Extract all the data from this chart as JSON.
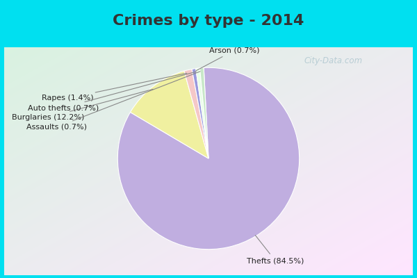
{
  "title": "Crimes by type - 2014",
  "labels": [
    "Thefts",
    "Burglaries",
    "Rapes",
    "Arson",
    "Auto thefts",
    "Assaults"
  ],
  "percentages": [
    84.5,
    12.2,
    1.4,
    0.7,
    0.7,
    0.7
  ],
  "colors": [
    "#c0aee0",
    "#f0f0a0",
    "#f5c8c8",
    "#9999dd",
    "#e8ffe8",
    "#c8e8c8"
  ],
  "label_texts": [
    "Thefts (84.5%)",
    "Burglaries (12.2%)",
    "Rapes (1.4%)",
    "Arson (0.7%)",
    "Auto thefts (0.7%)",
    "Assaults (0.7%)"
  ],
  "title_fontsize": 16,
  "watermark": "City-Data.com",
  "cyan_color": "#00e0f0",
  "title_color": "#333333"
}
